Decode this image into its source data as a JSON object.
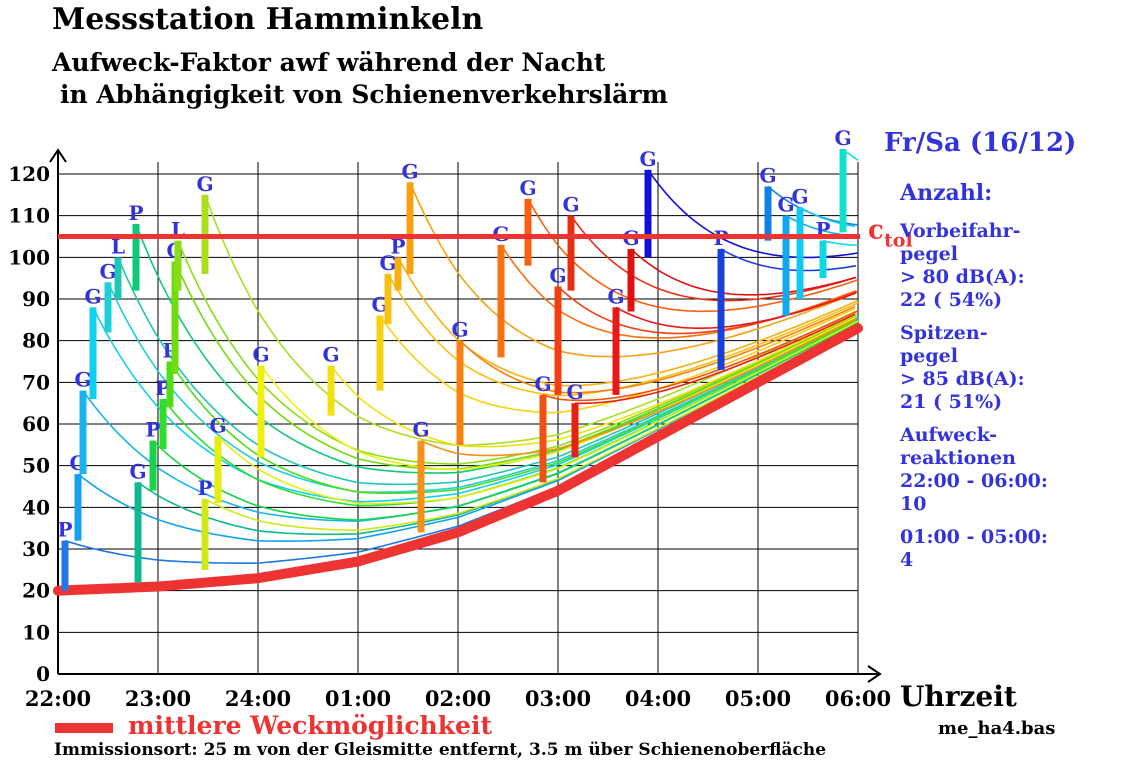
{
  "header": {
    "title": "Messstation Hamminkeln",
    "subtitle_line1": "Aufweck-Faktor awf  während der Nacht",
    "subtitle_line2": "in Abhängigkeit von Schienenverkehrslärm"
  },
  "panel": {
    "night": "Fr/Sa (16/12)",
    "count_heading": "Anzahl:",
    "pass_label_1": "Vorbeifahr-",
    "pass_label_2": "pegel",
    "pass_label_3": "> 80 dB(A):",
    "pass_value": "22   ( 54%)",
    "peak_label_1": "Spitzen-",
    "peak_label_2": "pegel",
    "peak_label_3": "> 85 dB(A):",
    "peak_value": "21   ( 51%)",
    "wake_label_1": "Aufweck-",
    "wake_label_2": "reaktionen",
    "wake_range_1": "22:00 - 06:00:",
    "wake_value_1": "10",
    "wake_range_2": "01:00 - 05:00:",
    "wake_value_2": "4"
  },
  "legend": {
    "mean_label": "mittlere Weckmöglichkeit",
    "mean_color": "#ee3333"
  },
  "file_name": "me_ha4.bas",
  "footer": "Immissionsort: 25 m von der Gleismitte entfernt, 3.5 m über Schienenoberfläche",
  "chart_data": {
    "type": "line",
    "xlabel": "Uhrzeit",
    "x_ticks": [
      "22:00",
      "23:00",
      "24:00",
      "01:00",
      "02:00",
      "03:00",
      "04:00",
      "05:00",
      "06:00"
    ],
    "ylim": [
      0,
      120
    ],
    "y_ticks": [
      0,
      10,
      20,
      30,
      40,
      50,
      60,
      70,
      80,
      90,
      100,
      110,
      120
    ],
    "grid": true,
    "c_tol": {
      "label": "c",
      "subscript": "tol",
      "value": 105,
      "color": "#ee3333"
    },
    "mean_wake_curve": {
      "name": "mittlere Weckmöglichkeit",
      "color": "#ee3333",
      "points": [
        [
          0,
          20
        ],
        [
          1,
          21
        ],
        [
          2,
          23
        ],
        [
          3,
          27
        ],
        [
          4,
          34
        ],
        [
          5,
          44
        ],
        [
          6,
          57
        ],
        [
          7,
          70
        ],
        [
          8,
          83
        ]
      ]
    },
    "events": [
      {
        "t": 0.07,
        "low": 20,
        "high": 32,
        "label": "P",
        "color": "#1e78e6"
      },
      {
        "t": 0.2,
        "low": 32,
        "high": 48,
        "label": "G",
        "color": "#14a0f0"
      },
      {
        "t": 0.25,
        "low": 48,
        "high": 68,
        "label": "G",
        "color": "#18b4f0"
      },
      {
        "t": 0.35,
        "low": 66,
        "high": 88,
        "label": "G",
        "color": "#10d0f0"
      },
      {
        "t": 0.5,
        "low": 82,
        "high": 94,
        "label": "G",
        "color": "#1ecfd8"
      },
      {
        "t": 0.6,
        "low": 90,
        "high": 100,
        "label": "L",
        "color": "#1ec8b4"
      },
      {
        "t": 0.8,
        "low": 22,
        "high": 46,
        "label": "G",
        "color": "#10b890"
      },
      {
        "t": 0.78,
        "low": 92,
        "high": 108,
        "label": "P",
        "color": "#10c878"
      },
      {
        "t": 0.95,
        "low": 44,
        "high": 56,
        "label": "P",
        "color": "#18d44a"
      },
      {
        "t": 1.05,
        "low": 54,
        "high": 66,
        "label": "P",
        "color": "#30dc30"
      },
      {
        "t": 1.12,
        "low": 64,
        "high": 75,
        "label": "P",
        "color": "#50dc18"
      },
      {
        "t": 1.17,
        "low": 72,
        "high": 99,
        "label": "G",
        "color": "#70dc10"
      },
      {
        "t": 1.2,
        "low": 92,
        "high": 104,
        "label": "L",
        "color": "#88dc18"
      },
      {
        "t": 1.47,
        "low": 25,
        "high": 42,
        "label": "P",
        "color": "#d0e818"
      },
      {
        "t": 1.47,
        "low": 96,
        "high": 115,
        "label": "G",
        "color": "#a8e020"
      },
      {
        "t": 1.6,
        "low": 41,
        "high": 57,
        "label": "G",
        "color": "#e4ec10"
      },
      {
        "t": 2.03,
        "low": 52,
        "high": 74,
        "label": "G",
        "color": "#f0f010"
      },
      {
        "t": 2.73,
        "low": 62,
        "high": 74,
        "label": "G",
        "color": "#f4e010"
      },
      {
        "t": 3.22,
        "low": 68,
        "high": 86,
        "label": "G",
        "color": "#f8d010"
      },
      {
        "t": 3.3,
        "low": 84,
        "high": 96,
        "label": "G",
        "color": "#f8c010"
      },
      {
        "t": 3.4,
        "low": 92,
        "high": 100,
        "label": "P",
        "color": "#f8b010"
      },
      {
        "t": 3.52,
        "low": 96,
        "high": 118,
        "label": "G",
        "color": "#f8a010"
      },
      {
        "t": 3.63,
        "low": 34,
        "high": 56,
        "label": "G",
        "color": "#f89018"
      },
      {
        "t": 4.02,
        "low": 55,
        "high": 80,
        "label": "G",
        "color": "#f88010"
      },
      {
        "t": 4.43,
        "low": 76,
        "high": 103,
        "label": "G",
        "color": "#f87010"
      },
      {
        "t": 4.7,
        "low": 98,
        "high": 114,
        "label": "G",
        "color": "#f86010"
      },
      {
        "t": 4.85,
        "low": 46,
        "high": 67,
        "label": "G",
        "color": "#f05010"
      },
      {
        "t": 5.0,
        "low": 67,
        "high": 93,
        "label": "G",
        "color": "#f04010"
      },
      {
        "t": 5.13,
        "low": 92,
        "high": 110,
        "label": "G",
        "color": "#e83010"
      },
      {
        "t": 5.17,
        "low": 52,
        "high": 65,
        "label": "G",
        "color": "#e82010"
      },
      {
        "t": 5.58,
        "low": 67,
        "high": 88,
        "label": "G",
        "color": "#e81818"
      },
      {
        "t": 5.73,
        "low": 87,
        "high": 102,
        "label": "G",
        "color": "#e01010"
      },
      {
        "t": 5.9,
        "low": 100,
        "high": 121,
        "label": "G",
        "color": "#1010d8"
      },
      {
        "t": 6.63,
        "low": 73,
        "high": 102,
        "label": "P",
        "color": "#1840e0"
      },
      {
        "t": 7.1,
        "low": 104,
        "high": 117,
        "label": "G",
        "color": "#1080e8"
      },
      {
        "t": 7.28,
        "low": 86,
        "high": 110,
        "label": "G",
        "color": "#10a8f0"
      },
      {
        "t": 7.42,
        "low": 90,
        "high": 112,
        "label": "G",
        "color": "#10c8f0"
      },
      {
        "t": 7.65,
        "low": 95,
        "high": 104,
        "label": "P",
        "color": "#10d8e0"
      },
      {
        "t": 7.85,
        "low": 106,
        "high": 126,
        "label": "G",
        "color": "#10e0d0"
      }
    ]
  }
}
